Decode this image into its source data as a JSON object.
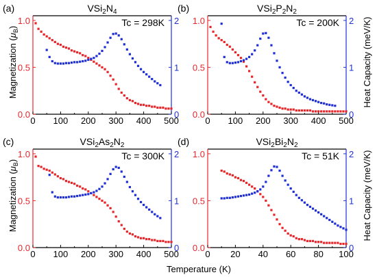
{
  "xlabel": "Temperature (K)",
  "ylabel_left": "Magnetization (μB)",
  "ylabel_left_main": "Magnetization (",
  "ylabel_left_mu": "μ",
  "ylabel_left_sub": "B",
  "ylabel_left_close": ")",
  "ylabel_right": "Heat Capacity (meV/K)",
  "colors": {
    "magnetization": "#e8262a",
    "heat_capacity": "#1f2fd6",
    "axis_left": "#e8262a",
    "axis_right": "#1f2fd6"
  },
  "chart_data": [
    {
      "type": "scatter",
      "panel": "(a)",
      "title": "VSi2N4",
      "title_parts": [
        {
          "t": "VSi"
        },
        {
          "t": "2",
          "sub": true
        },
        {
          "t": "N"
        },
        {
          "t": "4",
          "sub": true
        }
      ],
      "tc": "Tc = 298K",
      "xlim": [
        0,
        500
      ],
      "xticks": [
        0,
        100,
        200,
        300,
        400,
        500
      ],
      "ylim_left": [
        0,
        1.05
      ],
      "yticks_left": [
        "0.0",
        "0.5",
        "1.0"
      ],
      "ylim_right": [
        0,
        2.1
      ],
      "yticks_right": [
        "0",
        "1",
        "2"
      ],
      "series": [
        {
          "axis": "left",
          "color": "#e8262a",
          "x": [
            10,
            20,
            30,
            40,
            50,
            60,
            70,
            80,
            90,
            100,
            110,
            120,
            130,
            140,
            150,
            160,
            170,
            180,
            190,
            200,
            210,
            220,
            230,
            240,
            250,
            260,
            270,
            280,
            290,
            300,
            310,
            320,
            330,
            340,
            350,
            360,
            370,
            380,
            390,
            400,
            410,
            420,
            430,
            440,
            450,
            460,
            470,
            480,
            490,
            500
          ],
          "y": [
            0.97,
            0.91,
            0.88,
            0.85,
            0.83,
            0.81,
            0.79,
            0.77,
            0.75,
            0.74,
            0.72,
            0.71,
            0.7,
            0.68,
            0.67,
            0.66,
            0.65,
            0.63,
            0.62,
            0.6,
            0.58,
            0.56,
            0.54,
            0.52,
            0.5,
            0.48,
            0.45,
            0.41,
            0.37,
            0.32,
            0.27,
            0.23,
            0.2,
            0.17,
            0.15,
            0.14,
            0.12,
            0.11,
            0.1,
            0.1,
            0.09,
            0.09,
            0.08,
            0.08,
            0.07,
            0.07,
            0.07,
            0.06,
            0.06,
            0.06
          ]
        },
        {
          "axis": "right",
          "color": "#1f2fd6",
          "x": [
            50,
            60,
            70,
            80,
            90,
            100,
            110,
            120,
            130,
            140,
            150,
            160,
            170,
            180,
            190,
            200,
            210,
            220,
            230,
            240,
            250,
            260,
            270,
            280,
            290,
            300,
            310,
            320,
            330,
            340,
            350,
            360,
            370,
            380,
            390,
            400,
            410,
            420,
            430,
            440,
            450,
            460
          ],
          "y": [
            1.37,
            1.22,
            1.13,
            1.09,
            1.08,
            1.08,
            1.08,
            1.09,
            1.09,
            1.1,
            1.11,
            1.11,
            1.12,
            1.13,
            1.14,
            1.16,
            1.18,
            1.2,
            1.24,
            1.29,
            1.35,
            1.43,
            1.53,
            1.63,
            1.71,
            1.72,
            1.68,
            1.6,
            1.49,
            1.38,
            1.28,
            1.19,
            1.11,
            1.03,
            0.96,
            0.9,
            0.85,
            0.8,
            0.75,
            0.7,
            0.66,
            0.62
          ]
        }
      ]
    },
    {
      "type": "scatter",
      "panel": "(b)",
      "title": "VSi2P2N2",
      "title_parts": [
        {
          "t": "VSi"
        },
        {
          "t": "2",
          "sub": true
        },
        {
          "t": "P"
        },
        {
          "t": "2",
          "sub": true
        },
        {
          "t": "N"
        },
        {
          "t": "2",
          "sub": true
        }
      ],
      "tc": "Tc = 200K",
      "xlim": [
        0,
        500
      ],
      "xticks": [
        0,
        100,
        200,
        300,
        400,
        500
      ],
      "ylim_left": [
        0,
        1.05
      ],
      "yticks_left": [
        "0.0",
        "0.5",
        "1.0"
      ],
      "ylim_right": [
        0,
        2.1
      ],
      "yticks_right": [
        "0",
        "1",
        "2"
      ],
      "series": [
        {
          "axis": "left",
          "color": "#e8262a",
          "x": [
            10,
            20,
            30,
            40,
            50,
            60,
            70,
            80,
            90,
            100,
            110,
            120,
            130,
            140,
            150,
            160,
            170,
            180,
            190,
            200,
            210,
            220,
            230,
            240,
            250,
            260,
            270,
            280,
            290,
            300,
            310,
            320,
            330,
            340,
            350,
            360,
            370,
            380,
            390,
            400,
            410,
            420,
            430,
            440,
            450,
            460,
            470,
            480,
            490,
            500
          ],
          "y": [
            0.93,
            0.88,
            0.84,
            0.81,
            0.79,
            0.77,
            0.74,
            0.72,
            0.69,
            0.66,
            0.63,
            0.6,
            0.56,
            0.51,
            0.46,
            0.4,
            0.34,
            0.29,
            0.24,
            0.2,
            0.16,
            0.13,
            0.11,
            0.09,
            0.08,
            0.07,
            0.06,
            0.06,
            0.05,
            0.05,
            0.05,
            0.04,
            0.04,
            0.04,
            0.04,
            0.04,
            0.04,
            0.03,
            0.03,
            0.03,
            0.03,
            0.03,
            0.03,
            0.03,
            0.03,
            0.03,
            0.03,
            0.03,
            0.03,
            0.03
          ]
        },
        {
          "axis": "right",
          "color": "#1f2fd6",
          "x": [
            50,
            60,
            70,
            80,
            90,
            100,
            110,
            120,
            130,
            140,
            150,
            160,
            170,
            180,
            190,
            200,
            210,
            220,
            230,
            240,
            250,
            260,
            270,
            280,
            290,
            300,
            310,
            320,
            330,
            340,
            350,
            360,
            370,
            380,
            390,
            400,
            410,
            420,
            430,
            440,
            450,
            460
          ],
          "y": [
            1.93,
            1.22,
            1.11,
            1.09,
            1.09,
            1.1,
            1.11,
            1.13,
            1.15,
            1.18,
            1.22,
            1.28,
            1.36,
            1.47,
            1.61,
            1.72,
            1.73,
            1.63,
            1.47,
            1.3,
            1.14,
            1.0,
            0.88,
            0.78,
            0.69,
            0.62,
            0.56,
            0.5,
            0.46,
            0.42,
            0.38,
            0.35,
            0.32,
            0.3,
            0.28,
            0.26,
            0.24,
            0.23,
            0.21,
            0.2,
            0.19,
            0.18
          ]
        }
      ]
    },
    {
      "type": "scatter",
      "panel": "(c)",
      "title": "VSi2As2N2",
      "title_parts": [
        {
          "t": "VSi"
        },
        {
          "t": "2",
          "sub": true
        },
        {
          "t": "As"
        },
        {
          "t": "2",
          "sub": true
        },
        {
          "t": "N"
        },
        {
          "t": "2",
          "sub": true
        }
      ],
      "tc": "Tc = 300K",
      "xlim": [
        0,
        500
      ],
      "xticks": [
        0,
        100,
        200,
        300,
        400,
        500
      ],
      "ylim_left": [
        0,
        1.05
      ],
      "yticks_left": [
        "0.0",
        "0.5",
        "1.0"
      ],
      "ylim_right": [
        0,
        2.1
      ],
      "yticks_right": [
        "0",
        "1",
        "2"
      ],
      "series": [
        {
          "axis": "left",
          "color": "#e8262a",
          "x": [
            10,
            20,
            30,
            40,
            50,
            60,
            70,
            80,
            90,
            100,
            110,
            120,
            130,
            140,
            150,
            160,
            170,
            180,
            190,
            200,
            210,
            220,
            230,
            240,
            250,
            260,
            270,
            280,
            290,
            300,
            310,
            320,
            330,
            340,
            350,
            360,
            370,
            380,
            390,
            400,
            410,
            420,
            430,
            440,
            450,
            460,
            470,
            480,
            490,
            500
          ],
          "y": [
            0.97,
            0.87,
            0.86,
            0.84,
            0.83,
            0.82,
            0.8,
            0.78,
            0.76,
            0.74,
            0.73,
            0.71,
            0.7,
            0.69,
            0.68,
            0.66,
            0.65,
            0.63,
            0.62,
            0.6,
            0.58,
            0.56,
            0.54,
            0.52,
            0.5,
            0.48,
            0.45,
            0.42,
            0.38,
            0.33,
            0.28,
            0.24,
            0.2,
            0.17,
            0.15,
            0.14,
            0.12,
            0.11,
            0.1,
            0.1,
            0.09,
            0.09,
            0.08,
            0.08,
            0.07,
            0.07,
            0.07,
            0.06,
            0.06,
            0.06
          ]
        },
        {
          "axis": "right",
          "color": "#1f2fd6",
          "x": [
            60,
            70,
            80,
            90,
            100,
            110,
            120,
            130,
            140,
            150,
            160,
            170,
            180,
            190,
            200,
            210,
            220,
            230,
            240,
            250,
            260,
            270,
            280,
            290,
            300,
            310,
            320,
            330,
            340,
            350,
            360,
            370,
            380,
            390,
            400,
            410,
            420,
            430,
            440,
            450,
            460
          ],
          "y": [
            1.55,
            1.18,
            1.09,
            1.07,
            1.07,
            1.07,
            1.07,
            1.08,
            1.09,
            1.09,
            1.1,
            1.11,
            1.12,
            1.13,
            1.14,
            1.16,
            1.18,
            1.21,
            1.25,
            1.3,
            1.37,
            1.46,
            1.57,
            1.67,
            1.72,
            1.7,
            1.62,
            1.51,
            1.4,
            1.29,
            1.2,
            1.12,
            1.04,
            0.97,
            0.91,
            0.86,
            0.81,
            0.76,
            0.71,
            0.67,
            0.63
          ]
        }
      ]
    },
    {
      "type": "scatter",
      "panel": "(d)",
      "title": "VSi2Bi2N2",
      "title_parts": [
        {
          "t": "VSi"
        },
        {
          "t": "2",
          "sub": true
        },
        {
          "t": "Bi"
        },
        {
          "t": "2",
          "sub": true
        },
        {
          "t": "N"
        },
        {
          "t": "2",
          "sub": true
        }
      ],
      "tc": "Tc = 51K",
      "xlim": [
        0,
        100
      ],
      "xticks": [
        0,
        20,
        40,
        60,
        80,
        100
      ],
      "ylim_left": [
        0,
        1.05
      ],
      "yticks_left": [
        "0.0",
        "0.5",
        "1.0"
      ],
      "ylim_right": [
        0,
        2.1
      ],
      "yticks_right": [
        "0",
        "1",
        "2"
      ],
      "series": [
        {
          "axis": "left",
          "color": "#e8262a",
          "x": [
            10,
            12,
            14,
            16,
            18,
            20,
            22,
            24,
            26,
            28,
            30,
            32,
            34,
            36,
            38,
            40,
            42,
            44,
            46,
            48,
            50,
            52,
            54,
            56,
            58,
            60,
            62,
            64,
            66,
            68,
            70,
            72,
            74,
            76,
            78,
            80,
            82,
            84,
            86,
            88,
            90,
            92,
            94,
            96,
            98,
            100
          ],
          "y": [
            0.82,
            0.81,
            0.79,
            0.78,
            0.77,
            0.75,
            0.74,
            0.72,
            0.71,
            0.69,
            0.67,
            0.65,
            0.63,
            0.6,
            0.57,
            0.54,
            0.5,
            0.45,
            0.4,
            0.35,
            0.3,
            0.25,
            0.21,
            0.18,
            0.15,
            0.13,
            0.12,
            0.1,
            0.09,
            0.09,
            0.08,
            0.07,
            0.07,
            0.07,
            0.06,
            0.06,
            0.06,
            0.05,
            0.05,
            0.05,
            0.05,
            0.05,
            0.05,
            0.04,
            0.04,
            0.04
          ]
        },
        {
          "axis": "right",
          "color": "#1f2fd6",
          "x": [
            10,
            12,
            14,
            16,
            18,
            20,
            22,
            24,
            26,
            28,
            30,
            32,
            34,
            36,
            38,
            40,
            42,
            44,
            46,
            48,
            50,
            52,
            54,
            56,
            58,
            60,
            62,
            64,
            66,
            68,
            70,
            72,
            74,
            76,
            78,
            80,
            82,
            84,
            86,
            88,
            90,
            92,
            94,
            96,
            98,
            100
          ],
          "y": [
            1.05,
            1.05,
            1.06,
            1.06,
            1.07,
            1.08,
            1.09,
            1.1,
            1.11,
            1.12,
            1.13,
            1.15,
            1.17,
            1.2,
            1.24,
            1.3,
            1.4,
            1.53,
            1.65,
            1.73,
            1.72,
            1.64,
            1.53,
            1.43,
            1.34,
            1.26,
            1.19,
            1.12,
            1.06,
            1.01,
            0.96,
            0.91,
            0.87,
            0.83,
            0.79,
            0.75,
            0.71,
            0.67,
            0.63,
            0.59,
            0.55,
            0.51,
            0.47,
            0.44,
            0.41,
            0.38
          ]
        }
      ]
    }
  ]
}
